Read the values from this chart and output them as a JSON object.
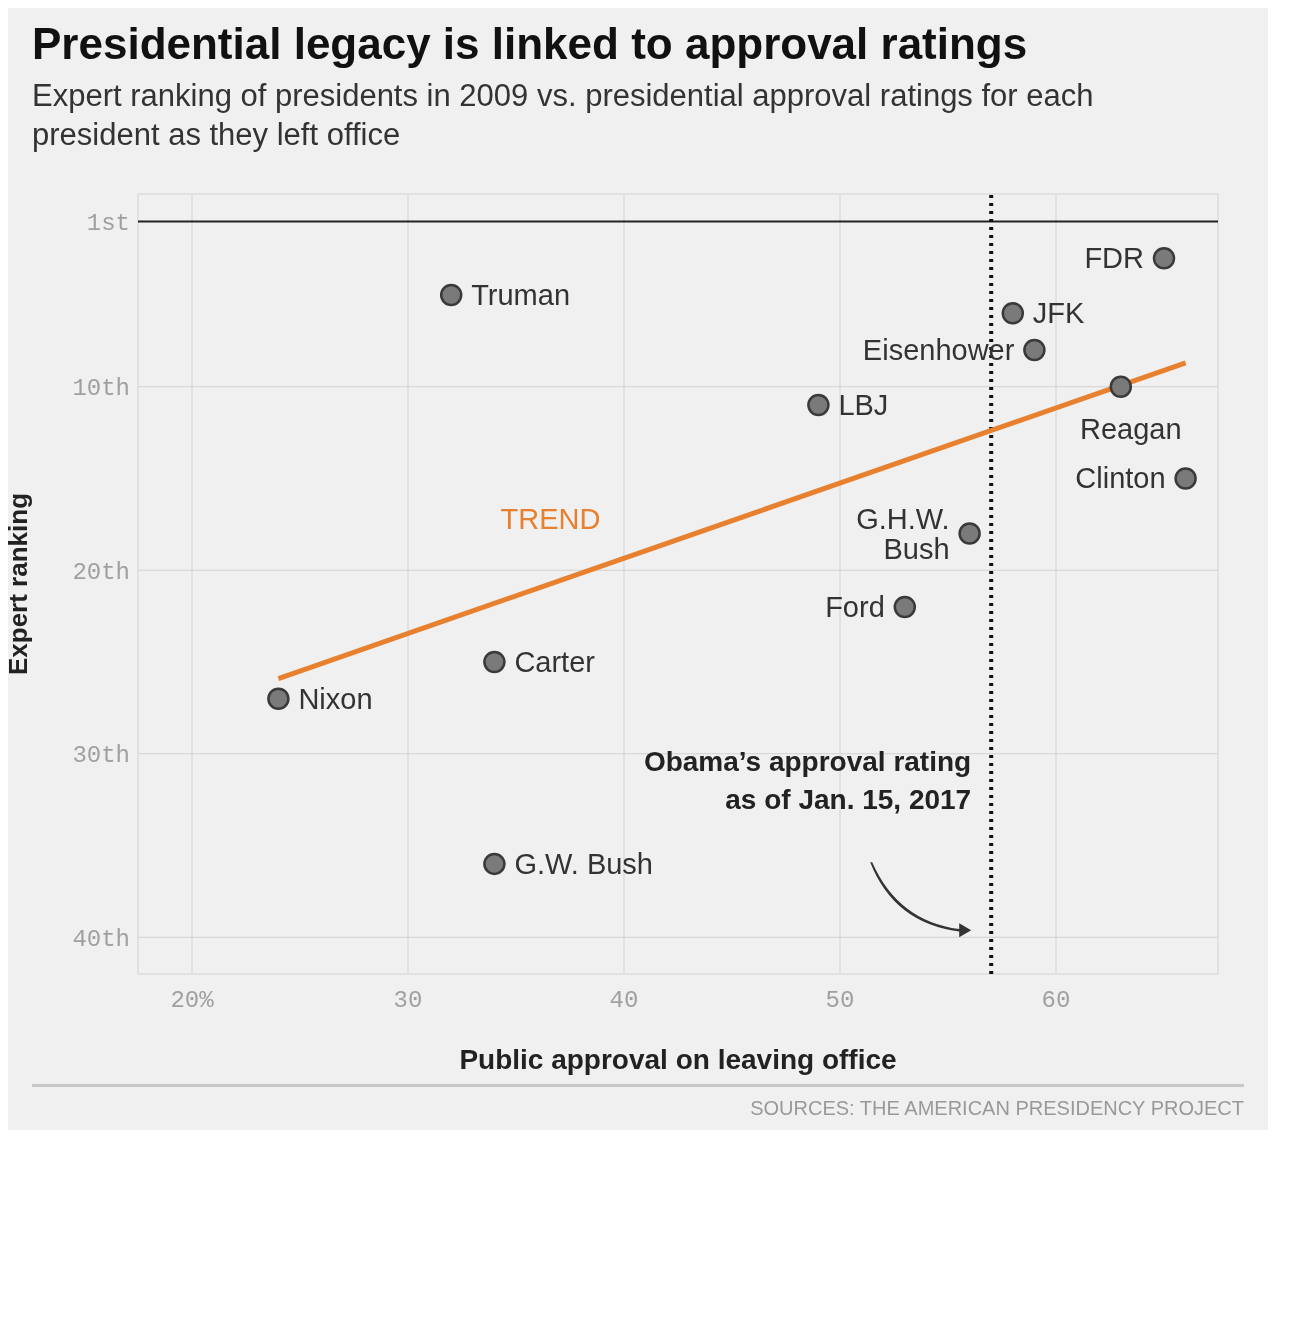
{
  "chart_data": {
    "type": "scatter",
    "title": "Presidential legacy is linked to approval ratings",
    "subtitle": "Expert ranking of presidents in 2009 vs. presidential approval ratings for each president as they left office",
    "xlabel": "Public approval on leaving office",
    "ylabel": "Expert ranking",
    "series": [
      {
        "type": "scatter",
        "color": "#7a7a7a",
        "marker": "circle",
        "x": [
          65,
          32,
          58,
          59,
          63,
          49,
          66,
          56,
          53,
          34,
          24,
          34
        ],
        "values": [
          3,
          5,
          6,
          8,
          10,
          11,
          15,
          18,
          22,
          25,
          27,
          36
        ]
      },
      {
        "type": "line",
        "name": "TREND",
        "color": "#e8812f",
        "marker": "none",
        "x": [
          24,
          66
        ],
        "values": [
          25.9,
          8.7
        ]
      }
    ],
    "xlim": [
      17.5,
      67.5
    ],
    "ylim": [
      42,
      -0.5
    ],
    "xticks": [
      {
        "value": 20,
        "label": "20%"
      },
      30,
      40,
      50,
      60
    ],
    "yticks": [
      {
        "value": 1,
        "label": "1st"
      },
      {
        "value": 10,
        "label": "10th"
      },
      {
        "value": 20,
        "label": "20th"
      },
      {
        "value": 30,
        "label": "30th"
      },
      {
        "value": 40,
        "label": "40th"
      }
    ],
    "grid": true,
    "ref_lines": [
      {
        "axis": "y",
        "value": 1,
        "color": "#222222",
        "line_style": "solid"
      },
      {
        "axis": "x",
        "value": 57,
        "label": "Obama’s approval rating as of Jan. 15, 2017",
        "color": "#111111",
        "line_style": "dotted"
      }
    ],
    "annotations": [
      {
        "text": "FDR",
        "x": 65,
        "y": 3
      },
      {
        "text": "Truman",
        "x": 32,
        "y": 5
      },
      {
        "text": "JFK",
        "x": 58,
        "y": 6
      },
      {
        "text": "Eisenhower",
        "x": 59,
        "y": 8
      },
      {
        "text": "Reagan",
        "x": 63,
        "y": 10
      },
      {
        "text": "LBJ",
        "x": 49,
        "y": 11
      },
      {
        "text": "Clinton",
        "x": 66,
        "y": 15
      },
      {
        "text": "G.H.W. Bush",
        "x": 56,
        "y": 18
      },
      {
        "text": "Ford",
        "x": 53,
        "y": 22
      },
      {
        "text": "Carter",
        "x": 34,
        "y": 25
      },
      {
        "text": "Nixon",
        "x": 24,
        "y": 27
      },
      {
        "text": "G.W. Bush",
        "x": 34,
        "y": 36
      },
      "SOURCES: THE AMERICAN PRESIDENCY PROJECT"
    ]
  }
}
